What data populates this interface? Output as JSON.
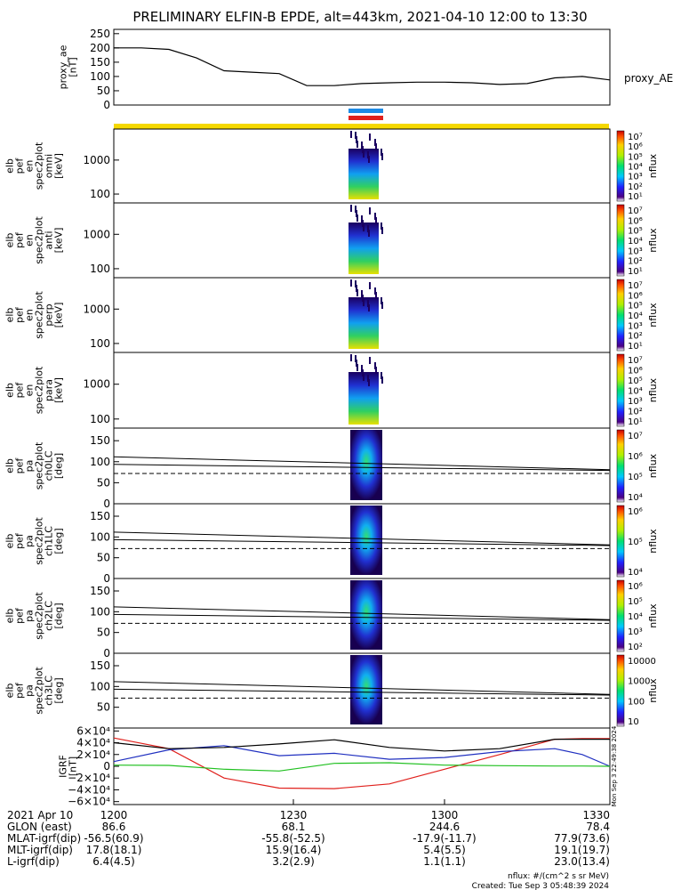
{
  "title": "PRELIMINARY ELFIN-B EPDE, alt=443km, 2021-04-10 12:00 to 13:30",
  "colors": {
    "bar_yellow": "#f5d800",
    "bar_blue": "#1e8ce6",
    "bar_red": "#e0201c"
  },
  "panels": [
    {
      "id": "ae",
      "ylabel": [
        "proxy_ae",
        "[nT]"
      ],
      "yticks": [
        "250",
        "200",
        "150",
        "100",
        "50",
        "0"
      ],
      "right_label": "proxy_AE"
    },
    {
      "id": "en_omni",
      "ylabel": [
        "elb",
        "pef",
        "en",
        "spec2plot",
        "omni",
        "[keV]"
      ],
      "yticks": [
        "1000",
        "100"
      ],
      "cbar_ticks": [
        "10⁷",
        "10⁶",
        "10⁵",
        "10⁴",
        "10³",
        "10²",
        "10¹"
      ],
      "cbar_label": "nflux"
    },
    {
      "id": "en_anti",
      "ylabel": [
        "elb",
        "pef",
        "en",
        "spec2plot",
        "anti",
        "[keV]"
      ],
      "yticks": [
        "1000",
        "100"
      ],
      "cbar_ticks": [
        "10⁷",
        "10⁶",
        "10⁵",
        "10⁴",
        "10³",
        "10²",
        "10¹"
      ],
      "cbar_label": "nflux"
    },
    {
      "id": "en_perp",
      "ylabel": [
        "elb",
        "pef",
        "en",
        "spec2plot",
        "perp",
        "[keV]"
      ],
      "yticks": [
        "1000",
        "100"
      ],
      "cbar_ticks": [
        "10⁷",
        "10⁶",
        "10⁵",
        "10⁴",
        "10³",
        "10²",
        "10¹"
      ],
      "cbar_label": "nflux"
    },
    {
      "id": "en_para",
      "ylabel": [
        "elb",
        "pef",
        "en",
        "spec2plot",
        "para",
        "[keV]"
      ],
      "yticks": [
        "1000",
        "100"
      ],
      "cbar_ticks": [
        "10⁷",
        "10⁶",
        "10⁵",
        "10⁴",
        "10³",
        "10²",
        "10¹"
      ],
      "cbar_label": "nflux"
    },
    {
      "id": "pa_ch0",
      "ylabel": [
        "elb",
        "pef",
        "pa",
        "spec2plot",
        "ch0LC",
        "[deg]"
      ],
      "yticks": [
        "150",
        "100",
        "50",
        "0"
      ],
      "cbar_ticks": [
        "10⁷",
        "10⁶",
        "10⁵",
        "10⁴"
      ],
      "cbar_label": "nflux"
    },
    {
      "id": "pa_ch1",
      "ylabel": [
        "elb",
        "pef",
        "pa",
        "spec2plot",
        "ch1LC",
        "[deg]"
      ],
      "yticks": [
        "150",
        "100",
        "50",
        "0"
      ],
      "cbar_ticks": [
        "10⁶",
        "10⁵",
        "10⁴"
      ],
      "cbar_label": "nflux"
    },
    {
      "id": "pa_ch2",
      "ylabel": [
        "elb",
        "pef",
        "pa",
        "spec2plot",
        "ch2LC",
        "[deg]"
      ],
      "yticks": [
        "150",
        "100",
        "50",
        "0"
      ],
      "cbar_ticks": [
        "10⁶",
        "10⁵",
        "10⁴",
        "10³",
        "10²"
      ],
      "cbar_label": "nflux"
    },
    {
      "id": "pa_ch3",
      "ylabel": [
        "elb",
        "pef",
        "pa",
        "spec2plot",
        "ch3LC",
        "[deg]"
      ],
      "yticks": [
        "150",
        "100",
        "50"
      ],
      "cbar_ticks": [
        "10000",
        "1000",
        "100",
        "10"
      ],
      "cbar_label": "nflux"
    },
    {
      "id": "igrf",
      "ylabel": [
        "IGRF",
        "[nT]"
      ],
      "yticks": [
        "6×10⁴",
        "4×10⁴",
        "2×10⁴",
        "0",
        "−2×10⁴",
        "−4×10⁴",
        "−6×10⁴"
      ],
      "side_text": "Mon Sep  3 22:49:38 2024"
    }
  ],
  "chart_data": {
    "type": "line",
    "x_range": [
      "12:00",
      "13:30"
    ],
    "series": [
      {
        "name": "proxy_AE",
        "x_min": [
          0,
          5,
          10,
          15,
          20,
          25,
          30,
          35,
          40,
          45,
          50,
          55,
          60,
          65,
          70,
          75,
          80,
          85,
          90
        ],
        "values": [
          200,
          200,
          195,
          165,
          120,
          115,
          110,
          68,
          68,
          75,
          78,
          80,
          80,
          78,
          72,
          75,
          95,
          100,
          88
        ]
      },
      {
        "x_min": [
          0,
          10,
          20,
          30,
          40,
          50,
          60,
          70,
          80,
          85,
          90
        ],
        "values": [
          48000,
          30000,
          -20000,
          -37000,
          -38000,
          -30000,
          -5000,
          20000,
          46000,
          47000,
          47000
        ]
      },
      {
        "x_min": [
          0,
          10,
          20,
          30,
          40,
          50,
          60,
          70,
          80,
          85,
          90
        ],
        "values": [
          8000,
          28000,
          35000,
          18000,
          22000,
          12000,
          15000,
          25000,
          30000,
          20000,
          0
        ]
      },
      {
        "x_min": [
          0,
          10,
          20,
          30,
          40,
          50,
          60,
          70,
          80,
          85,
          90
        ],
        "values": [
          40000,
          30000,
          32000,
          38000,
          45000,
          32000,
          26000,
          30000,
          46000,
          46000,
          46000
        ]
      },
      {
        "x_min": [
          0,
          10,
          20,
          30,
          40,
          50,
          60,
          70,
          80,
          85,
          90
        ],
        "values": [
          2000,
          1500,
          -5000,
          -8000,
          5000,
          6000,
          2000,
          1000,
          500,
          500,
          0
        ]
      }
    ]
  },
  "footer": {
    "xtick_labels": [
      "1200",
      "1230",
      "1300",
      "1330"
    ],
    "rows": [
      {
        "label": "2021 Apr 10",
        "values": [
          "1200",
          "1230",
          "1300",
          "1330"
        ]
      },
      {
        "label": "GLON (east)",
        "values": [
          "86.6",
          "68.1",
          "244.6",
          "78.4"
        ]
      },
      {
        "label": "MLAT-igrf(dip)",
        "values": [
          "-56.5(60.9)",
          "-55.8(-52.5)",
          "-17.9(-11.7)",
          "77.9(73.6)"
        ]
      },
      {
        "label": "MLT-igrf(dip)",
        "values": [
          "17.8(18.1)",
          "15.9(16.4)",
          "5.4(5.5)",
          "19.1(19.7)"
        ]
      },
      {
        "label": "L-igrf(dip)",
        "values": [
          "6.4(4.5)",
          "3.2(2.9)",
          "1.1(1.1)",
          "23.0(13.4)"
        ]
      }
    ],
    "units_note": "nflux: #/(cm^2 s sr MeV)",
    "created": "Created: Tue Sep  3 05:48:39 2024"
  }
}
